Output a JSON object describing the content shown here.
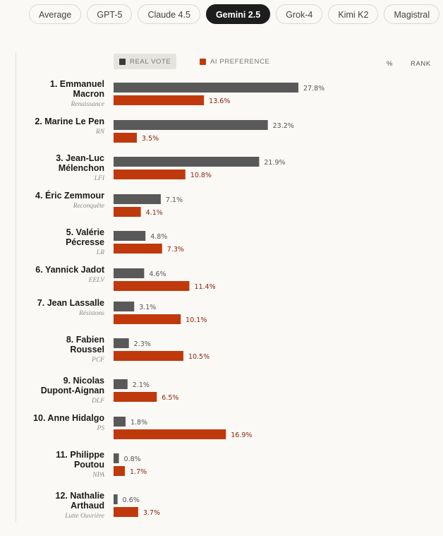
{
  "tabs": [
    "Average",
    "GPT-5",
    "Claude 4.5",
    "Gemini 2.5",
    "Grok-4",
    "Kimi K2",
    "Magistral"
  ],
  "active_tab": 3,
  "legend": {
    "real": "REAL VOTE",
    "ai": "AI PREFERENCE"
  },
  "columns": {
    "pct": "%",
    "rank": "RANK"
  },
  "colors": {
    "real": "#595959",
    "ai": "#c0390c",
    "ai_text": "#8e2308",
    "real_text": "#555555"
  },
  "chart_data": {
    "type": "bar",
    "orientation": "horizontal",
    "title": "",
    "xlim": [
      0,
      27.8
    ],
    "series_names": [
      "REAL VOTE",
      "AI PREFERENCE"
    ],
    "candidates": [
      {
        "lines": [
          "1. Emmanuel",
          "Macron"
        ],
        "party": "Renaissance",
        "real": 27.8,
        "ai": 13.6,
        "real_label": "27.8%",
        "ai_label": "13.6%"
      },
      {
        "lines": [
          "2. Marine Le Pen"
        ],
        "party": "RN",
        "real": 23.2,
        "ai": 3.5,
        "real_label": "23.2%",
        "ai_label": "3.5%"
      },
      {
        "lines": [
          "3. Jean-Luc",
          "Mélenchon"
        ],
        "party": "LFI",
        "real": 21.9,
        "ai": 10.8,
        "real_label": "21.9%",
        "ai_label": "10.8%"
      },
      {
        "lines": [
          "4. Éric Zemmour"
        ],
        "party": "Reconquête",
        "real": 7.1,
        "ai": 4.1,
        "real_label": "7.1%",
        "ai_label": "4.1%"
      },
      {
        "lines": [
          "5. Valérie",
          "Pécresse"
        ],
        "party": "LR",
        "real": 4.8,
        "ai": 7.3,
        "real_label": "4.8%",
        "ai_label": "7.3%"
      },
      {
        "lines": [
          "6. Yannick Jadot"
        ],
        "party": "EELV",
        "real": 4.6,
        "ai": 11.4,
        "real_label": "4.6%",
        "ai_label": "11.4%"
      },
      {
        "lines": [
          "7. Jean Lassalle"
        ],
        "party": "Résistons",
        "real": 3.1,
        "ai": 10.1,
        "real_label": "3.1%",
        "ai_label": "10.1%"
      },
      {
        "lines": [
          "8. Fabien",
          "Roussel"
        ],
        "party": "PCF",
        "real": 2.3,
        "ai": 10.5,
        "real_label": "2.3%",
        "ai_label": "10.5%"
      },
      {
        "lines": [
          "9. Nicolas",
          "Dupont-Aignan"
        ],
        "party": "DLF",
        "real": 2.1,
        "ai": 6.5,
        "real_label": "2.1%",
        "ai_label": "6.5%"
      },
      {
        "lines": [
          "10. Anne Hidalgo"
        ],
        "party": "PS",
        "real": 1.8,
        "ai": 16.9,
        "real_label": "1.8%",
        "ai_label": "16.9%"
      },
      {
        "lines": [
          "11. Philippe",
          "Poutou"
        ],
        "party": "NPA",
        "real": 0.8,
        "ai": 1.7,
        "real_label": "0.8%",
        "ai_label": "1.7%"
      },
      {
        "lines": [
          "12. Nathalie",
          "Arthaud"
        ],
        "party": "Lutte Ouvrière",
        "real": 0.6,
        "ai": 3.7,
        "real_label": "0.6%",
        "ai_label": "3.7%"
      }
    ]
  }
}
